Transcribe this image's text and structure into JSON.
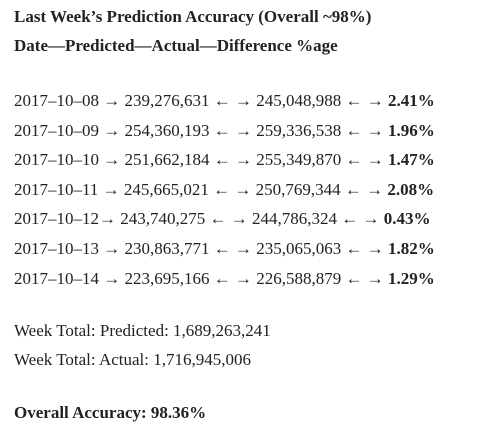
{
  "header": {
    "title": "Last Week’s Prediction Accuracy (Overall ~98%)",
    "columns": "Date—Predicted—Actual—Difference %age"
  },
  "rows": [
    {
      "text": "2017–10–08 → 239,276,631 ← → 245,048,988 ← →",
      "difference": "2.41%"
    },
    {
      "text": "2017–10–09 → 254,360,193 ← → 259,336,538 ← →",
      "difference": "1.96%"
    },
    {
      "text": "2017–10–10 → 251,662,184 ← → 255,349,870 ← →",
      "difference": "1.47%"
    },
    {
      "text": "2017–10–11 → 245,665,021 ← → 250,769,344 ← →",
      "difference": "2.08%"
    },
    {
      "text": "2017–10–12→ 243,740,275 ← → 244,786,324 ← →",
      "difference": "0.43%"
    },
    {
      "text": "2017–10–13 → 230,863,771 ← → 235,065,063 ← →",
      "difference": "1.82%"
    },
    {
      "text": "2017–10–14 → 223,695,166 ← → 226,588,879 ← →",
      "difference": "1.29%"
    }
  ],
  "totals": {
    "predicted": "Week Total: Predicted: 1,689,263,241",
    "actual": "Week Total: Actual: 1,716,945,006"
  },
  "overall": "Overall Accuracy: 98.36%"
}
